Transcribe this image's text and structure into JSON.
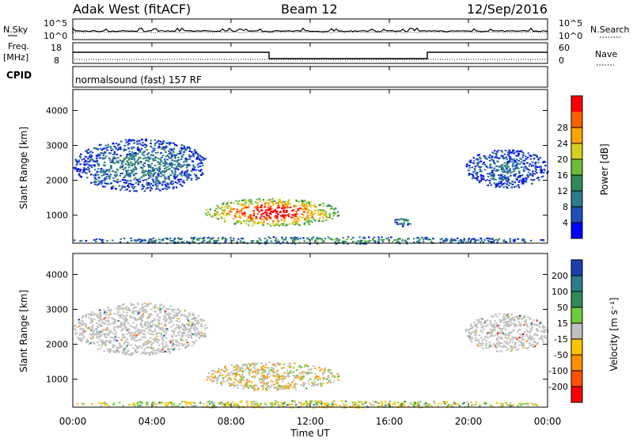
{
  "header": {
    "station": "Adak West (fitACF)",
    "beam": "Beam 12",
    "date": "12/Sep/2016"
  },
  "top_panels": {
    "nsky_label": "N.Sky",
    "nsky_ticks": [
      "10^5",
      "10^0"
    ],
    "nsearch_label": "N.Search",
    "nsearch_ticks": [
      "10^5",
      "10^0"
    ],
    "freq_label_1": "Freq.",
    "freq_label_2": "[MHz]",
    "freq_ticks": [
      "18",
      "8"
    ],
    "nave_label": "Nave",
    "nave_ticks": [
      "60",
      "0"
    ],
    "cpid_label": "CPID",
    "cpid_text": "normalsound (fast) 157 RF"
  },
  "chart_data": [
    {
      "type": "heatmap",
      "name": "power-panel",
      "ylabel": "Slant Range [km]",
      "ylim": [
        200,
        4600
      ],
      "yticks": [
        "1000",
        "2000",
        "3000",
        "4000"
      ],
      "colorbar_label": "Power [dB]",
      "colorbar_ticks": [
        "4",
        "8",
        "12",
        "16",
        "20",
        "24",
        "28"
      ],
      "colorbar_colors": [
        "#0000ff",
        "#1f4fb8",
        "#2e7d8c",
        "#2e8b57",
        "#6dbf3a",
        "#d8d020",
        "#ffa500",
        "#ff6000",
        "#ff0000"
      ],
      "regions": [
        {
          "t0": 0.0,
          "t1": 6.8,
          "r0": 1700,
          "r1": 3200,
          "level": 0.25
        },
        {
          "t0": 6.6,
          "t1": 13.5,
          "r0": 700,
          "r1": 1500,
          "level": 0.85
        },
        {
          "t0": 16.2,
          "t1": 17.2,
          "r0": 700,
          "r1": 1000,
          "level": 0.3
        },
        {
          "t0": 19.8,
          "t1": 24.0,
          "r0": 1800,
          "r1": 2900,
          "level": 0.2
        },
        {
          "t0": 0.0,
          "t1": 24.0,
          "r0": 200,
          "r1": 400,
          "level": 0.35
        }
      ]
    },
    {
      "type": "heatmap",
      "name": "velocity-panel",
      "ylabel": "Slant Range [km]",
      "ylim": [
        200,
        4600
      ],
      "yticks": [
        "1000",
        "2000",
        "3000",
        "4000"
      ],
      "colorbar_label": "Velocity [m s⁻¹]",
      "colorbar_ticks": [
        "200",
        "100",
        "50",
        "15",
        "-15",
        "-50",
        "-100",
        "-200"
      ],
      "colorbar_colors": [
        "#1c3fb0",
        "#2e7d8c",
        "#2e8b57",
        "#6dcc3a",
        "#c0c0c0",
        "#ffc400",
        "#ff9000",
        "#ff5000",
        "#ff0000"
      ],
      "regions": [
        {
          "t0": 0.0,
          "t1": 6.8,
          "r0": 1700,
          "r1": 3200,
          "level": "ground"
        },
        {
          "t0": 6.6,
          "t1": 13.5,
          "r0": 700,
          "r1": 1500,
          "level": "mixed"
        },
        {
          "t0": 19.8,
          "t1": 24.0,
          "r0": 1800,
          "r1": 2900,
          "level": "ground"
        },
        {
          "t0": 0.0,
          "t1": 24.0,
          "r0": 200,
          "r1": 400,
          "level": "low"
        }
      ]
    }
  ],
  "x_axis": {
    "label": "Time UT",
    "ticks": [
      "00:00",
      "04:00",
      "08:00",
      "12:00",
      "16:00",
      "20:00",
      "00:00"
    ],
    "xlim": [
      0,
      24
    ]
  }
}
